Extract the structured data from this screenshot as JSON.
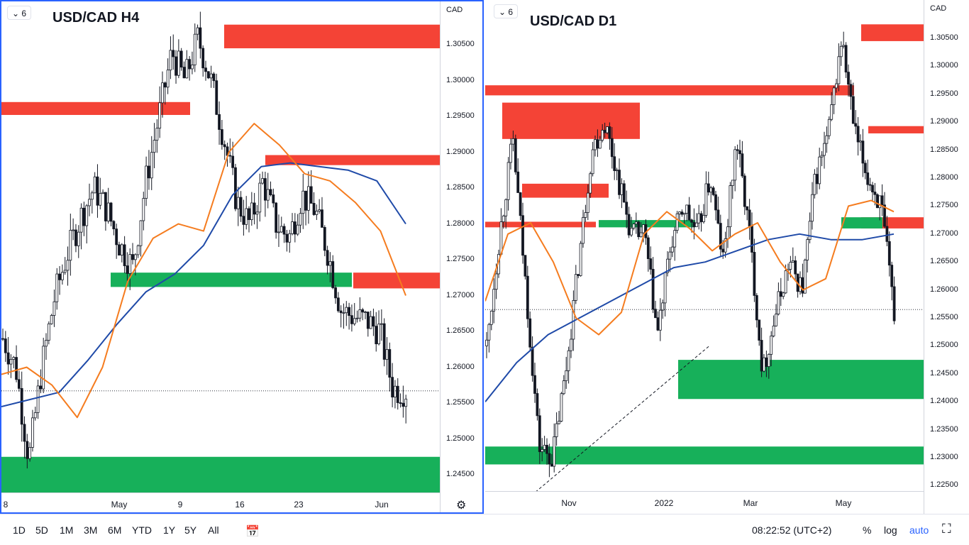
{
  "charts": [
    {
      "id": "left",
      "title": "USD/CAD H4",
      "legend_count": "6",
      "currency": "CAD",
      "y_ticks": [
        "1.30500",
        "1.30000",
        "1.29500",
        "1.29000",
        "1.28500",
        "1.28000",
        "1.27500",
        "1.27000",
        "1.26500",
        "1.26000",
        "1.25500",
        "1.25000",
        "1.24500"
      ],
      "x_ticks": [
        "8",
        "May",
        "9",
        "16",
        "23",
        "Jun"
      ]
    },
    {
      "id": "right",
      "title": "USD/CAD D1",
      "legend_count": "6",
      "currency": "CAD",
      "y_ticks": [
        "1.30500",
        "1.30000",
        "1.29500",
        "1.29000",
        "1.28500",
        "1.28000",
        "1.27500",
        "1.27000",
        "1.26500",
        "1.26000",
        "1.25500",
        "1.25000",
        "1.24500",
        "1.24000",
        "1.23500",
        "1.23000",
        "1.22500"
      ],
      "x_ticks": [
        "Nov",
        "2022",
        "Mar",
        "May"
      ]
    }
  ],
  "chart_data": [
    {
      "type": "candlestick",
      "title": "USD/CAD H4",
      "ylabel": "CAD",
      "ylim": [
        1.2435,
        1.3092
      ],
      "x_ticks": [
        "8",
        "May",
        "9",
        "16",
        "23",
        "Jun"
      ],
      "last_price": 1.2567,
      "supply_zones": [
        [
          1.3045,
          1.3078
        ],
        [
          1.2952,
          1.297
        ],
        [
          1.2882,
          1.2896
        ],
        [
          1.271,
          1.2732
        ]
      ],
      "demand_zones": [
        [
          1.2712,
          1.2732
        ],
        [
          1.2422,
          1.2475
        ]
      ],
      "ema_fast_color": "#f57c1f",
      "ema_slow_color": "#1f4aa8",
      "ema_fast": [
        1.259,
        1.26,
        1.2575,
        1.253,
        1.26,
        1.272,
        1.278,
        1.28,
        1.279,
        1.29,
        1.294,
        1.291,
        1.287,
        1.286,
        1.283,
        1.279,
        1.27
      ],
      "ema_slow": [
        1.2545,
        1.2555,
        1.2565,
        1.261,
        1.266,
        1.2705,
        1.273,
        1.277,
        1.284,
        1.288,
        1.2885,
        1.288,
        1.2875,
        1.286,
        1.28
      ],
      "close_path": [
        1.264,
        1.26,
        1.247,
        1.26,
        1.27,
        1.276,
        1.281,
        1.285,
        1.282,
        1.277,
        1.274,
        1.286,
        1.295,
        1.304,
        1.3,
        1.306,
        1.3,
        1.292,
        1.283,
        1.28,
        1.286,
        1.28,
        1.278,
        1.284,
        1.282,
        1.276,
        1.268,
        1.267,
        1.2665,
        1.265,
        1.257,
        1.2567
      ]
    },
    {
      "type": "candlestick",
      "title": "USD/CAD D1",
      "ylabel": "CAD",
      "ylim": [
        1.221,
        1.31
      ],
      "x_ticks": [
        "Nov",
        "2022",
        "Mar",
        "May"
      ],
      "last_price": 1.2565,
      "supply_zones": [
        [
          1.2948,
          1.2966
        ],
        [
          1.287,
          1.2935
        ],
        [
          1.2765,
          1.279
        ],
        [
          1.2712,
          1.2722
        ],
        [
          1.3045,
          1.3075
        ],
        [
          1.288,
          1.2893
        ],
        [
          1.271,
          1.273
        ]
      ],
      "demand_zones": [
        [
          1.2712,
          1.2725
        ],
        [
          1.2405,
          1.2475
        ],
        [
          1.2288,
          1.232
        ],
        [
          1.271,
          1.273
        ]
      ],
      "trendline": [
        [
          1.221,
          1.25
        ]
      ],
      "ema_fast_color": "#f57c1f",
      "ema_slow_color": "#1f4aa8",
      "ema_fast": [
        1.258,
        1.27,
        1.272,
        1.265,
        1.255,
        1.252,
        1.256,
        1.27,
        1.274,
        1.271,
        1.267,
        1.27,
        1.272,
        1.265,
        1.26,
        1.262,
        1.275,
        1.276,
        1.274
      ],
      "ema_slow": [
        1.24,
        1.247,
        1.252,
        1.255,
        1.258,
        1.261,
        1.264,
        1.265,
        1.267,
        1.269,
        1.27,
        1.269,
        1.269,
        1.27
      ],
      "close_path": [
        1.25,
        1.27,
        1.287,
        1.26,
        1.232,
        1.23,
        1.245,
        1.265,
        1.285,
        1.29,
        1.28,
        1.27,
        1.27,
        1.252,
        1.268,
        1.275,
        1.27,
        1.28,
        1.265,
        1.287,
        1.27,
        1.245,
        1.256,
        1.265,
        1.26,
        1.28,
        1.288,
        1.305,
        1.288,
        1.28,
        1.275,
        1.256
      ]
    }
  ],
  "bottombar": {
    "timeframes": [
      "1D",
      "5D",
      "1M",
      "3M",
      "6M",
      "YTD",
      "1Y",
      "5Y",
      "All"
    ],
    "time": "08:22:52 (UTC+2)",
    "percent": "%",
    "log": "log",
    "auto": "auto",
    "colors": {
      "auto": "#2962ff"
    }
  },
  "colors": {
    "up": "#131722",
    "supply": "#f44336",
    "demand": "#17b05a",
    "pane_border": "#2962ff"
  }
}
